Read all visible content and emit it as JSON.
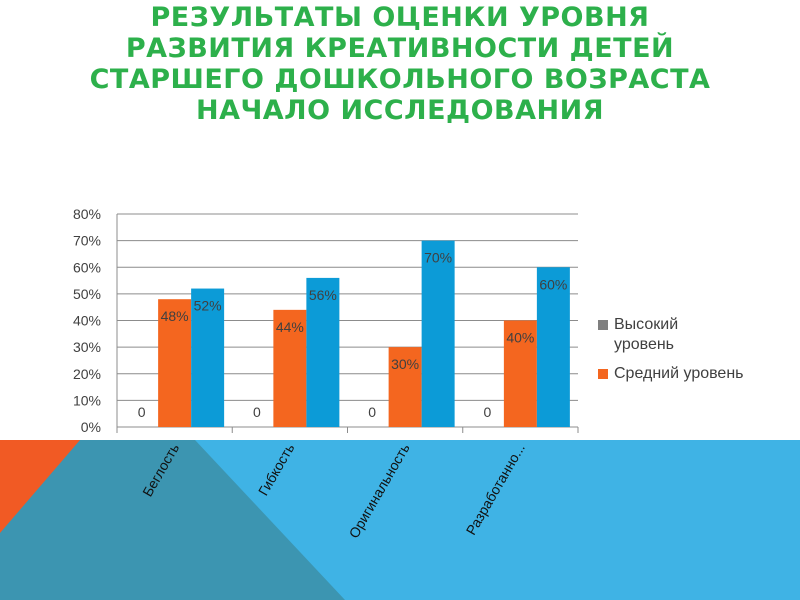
{
  "slide": {
    "title_lines": [
      "РЕЗУЛЬТАТЫ ОЦЕНКИ УРОВНЯ",
      "РАЗВИТИЯ КРЕАТИВНОСТИ  ДЕТЕЙ",
      "СТАРШЕГО ДОШКОЛЬНОГО ВОЗРАСТА",
      "НАЧАЛО ИССЛЕДОВАНИЯ"
    ]
  },
  "colors": {
    "title": "#2db04b",
    "high": "#7f7f7f",
    "medium": "#f4661f",
    "low": "#0c9bd7",
    "deco_blue": "#3fb3e5",
    "deco_orange": "#f15a24",
    "deco_teal": "#3c95b1"
  },
  "chart_data": {
    "type": "bar",
    "categories": [
      "Беглость",
      "Гибкость",
      "Оригинальность",
      "Разработанно..."
    ],
    "series": [
      {
        "name": "Высокий уровень",
        "values": [
          0,
          0,
          0,
          0
        ],
        "labels": [
          "0",
          "0",
          "0",
          "0"
        ],
        "color": "#7f7f7f"
      },
      {
        "name": "Средний уровень",
        "values": [
          48,
          44,
          30,
          40
        ],
        "labels": [
          "48%",
          "44%",
          "30%",
          "40%"
        ],
        "color": "#f4661f"
      },
      {
        "name": "",
        "values": [
          52,
          56,
          70,
          60
        ],
        "labels": [
          "52%",
          "56%",
          "70%",
          "60%"
        ],
        "color": "#0c9bd7"
      }
    ],
    "yticks": [
      "0%",
      "10%",
      "20%",
      "30%",
      "40%",
      "50%",
      "60%",
      "70%",
      "80%"
    ],
    "ylim": [
      0,
      80
    ],
    "grid": true,
    "legend_entries": [
      "Высокий уровень",
      "Средний уровень"
    ],
    "legend": "right",
    "xlabel": "",
    "ylabel": ""
  }
}
